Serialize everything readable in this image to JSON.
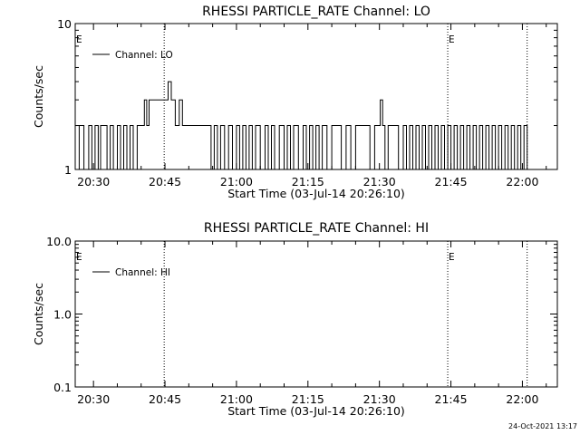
{
  "chart_data": [
    {
      "type": "line",
      "title": "RHESSI PARTICLE_RATE Channel: LO",
      "xlabel": "Start Time (03-Jul-14 20:26:10)",
      "ylabel": "Counts/sec",
      "yscale": "log",
      "ylim": [
        1,
        10
      ],
      "yticks": [
        "1",
        "10"
      ],
      "xlim": [
        "20:26:10",
        "22:07:20"
      ],
      "xticks": [
        "20:30",
        "20:45",
        "21:00",
        "21:15",
        "21:30",
        "21:45",
        "22:00"
      ],
      "grid": false,
      "legend_position": "top-left",
      "series": [
        {
          "name": "Channel: LO",
          "x": [
            "20:26:10",
            "20:27:00",
            "20:28:00",
            "20:29:00",
            "20:29:40",
            "20:30:20",
            "20:31:00",
            "20:31:30",
            "20:32:10",
            "20:32:50",
            "20:33:30",
            "20:34:10",
            "20:35:00",
            "20:35:40",
            "20:36:20",
            "20:37:00",
            "20:37:40",
            "20:38:20",
            "20:39:10",
            "20:40:00",
            "20:40:40",
            "20:41:10",
            "20:41:40",
            "20:43:00",
            "20:45:00",
            "20:45:40",
            "20:46:20",
            "20:47:10",
            "20:48:00",
            "20:48:40",
            "20:50:00",
            "20:52:00",
            "20:54:00",
            "20:54:40",
            "20:55:20",
            "20:56:00",
            "20:56:40",
            "20:57:30",
            "20:58:20",
            "20:59:10",
            "21:00:00",
            "21:00:40",
            "21:01:20",
            "21:02:00",
            "21:02:40",
            "21:03:20",
            "21:04:00",
            "21:05:00",
            "21:06:00",
            "21:06:40",
            "21:07:20",
            "21:08:00",
            "21:09:00",
            "21:10:00",
            "21:10:40",
            "21:11:20",
            "21:12:00",
            "21:13:00",
            "21:14:00",
            "21:14:40",
            "21:15:20",
            "21:16:00",
            "21:16:40",
            "21:17:20",
            "21:18:00",
            "21:19:00",
            "21:20:00",
            "21:21:00",
            "21:22:00",
            "21:23:00",
            "21:24:00",
            "21:25:00",
            "21:26:00",
            "21:27:00",
            "21:28:00",
            "21:29:00",
            "21:29:40",
            "21:30:10",
            "21:30:40",
            "21:31:10",
            "21:31:50",
            "21:33:00",
            "21:34:00",
            "21:35:00",
            "21:35:40",
            "21:36:20",
            "21:37:00",
            "21:37:40",
            "21:38:20",
            "21:39:00",
            "21:39:40",
            "21:40:20",
            "21:41:00",
            "21:41:40",
            "21:42:20",
            "21:43:00",
            "21:43:40",
            "21:44:20",
            "21:45:00",
            "21:45:40",
            "21:46:20",
            "21:47:00",
            "21:47:40",
            "21:48:20",
            "21:49:00",
            "21:49:40",
            "21:50:20",
            "21:51:00",
            "21:51:40",
            "21:52:20",
            "21:53:00",
            "21:53:40",
            "21:54:20",
            "21:55:00",
            "21:55:40",
            "21:56:20",
            "21:57:00",
            "21:57:40",
            "21:58:20",
            "21:59:00",
            "21:59:40",
            "22:00:20",
            "22:01:00"
          ],
          "y": [
            1,
            2,
            1,
            2,
            1,
            2,
            1,
            2,
            2,
            1,
            2,
            1,
            2,
            1,
            2,
            1,
            2,
            1,
            2,
            2,
            3,
            2,
            3,
            3,
            3,
            4,
            3,
            2,
            3,
            2,
            2,
            2,
            2,
            1,
            2,
            1,
            2,
            1,
            2,
            1,
            2,
            1,
            2,
            1,
            2,
            1,
            2,
            1,
            2,
            1,
            2,
            1,
            2,
            1,
            2,
            1,
            2,
            1,
            2,
            1,
            2,
            1,
            2,
            1,
            2,
            1,
            2,
            2,
            1,
            2,
            1,
            2,
            2,
            2,
            1,
            2,
            2,
            3,
            2,
            1,
            2,
            2,
            1,
            2,
            1,
            2,
            1,
            2,
            1,
            2,
            1,
            2,
            1,
            2,
            1,
            2,
            1,
            2,
            1,
            2,
            1,
            2,
            1,
            2,
            1,
            2,
            1,
            2,
            1,
            2,
            1,
            2,
            1,
            2,
            1,
            2,
            1,
            2,
            1,
            2,
            1,
            2,
            1
          ]
        }
      ],
      "markers": [
        {
          "x": "20:44:50",
          "label": ""
        },
        {
          "x": "21:44:20",
          "label": "E"
        },
        {
          "x": "22:01:00",
          "label": ""
        }
      ],
      "corner_label": "E"
    },
    {
      "type": "line",
      "title": "RHESSI PARTICLE_RATE Channel: HI",
      "xlabel": "Start Time (03-Jul-14 20:26:10)",
      "ylabel": "Counts/sec",
      "yscale": "log",
      "ylim": [
        0.1,
        10
      ],
      "yticks": [
        "0.1",
        "1.0",
        "10.0"
      ],
      "xlim": [
        "20:26:10",
        "22:07:20"
      ],
      "xticks": [
        "20:30",
        "20:45",
        "21:00",
        "21:15",
        "21:30",
        "21:45",
        "22:00"
      ],
      "grid": false,
      "legend_position": "top-left",
      "series": [
        {
          "name": "Channel: HI",
          "x": [],
          "y": []
        }
      ],
      "markers": [
        {
          "x": "20:44:50",
          "label": ""
        },
        {
          "x": "21:44:20",
          "label": "E"
        },
        {
          "x": "22:01:00",
          "label": ""
        }
      ],
      "corner_label": "E"
    }
  ],
  "footer": {
    "timestamp": "24-Oct-2021 13:17"
  }
}
